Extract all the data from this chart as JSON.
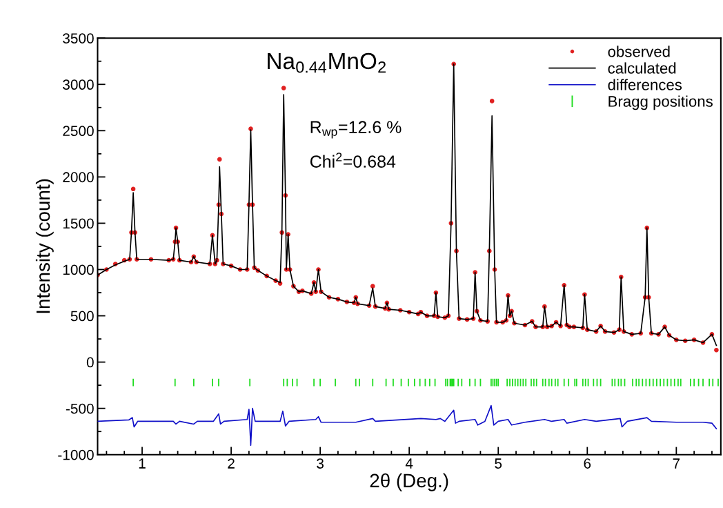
{
  "chart_data": {
    "type": "line",
    "xlabel": "2θ (Deg.)",
    "ylabel": "Intensity (count)",
    "annotations": [
      "Na$_{0.44}$MnO$_{2}$",
      "R$_{wp}$=12.6 %",
      "Chi$^{2}$=0.684"
    ],
    "xlim": [
      0.5,
      7.5
    ],
    "xticks": [
      1,
      2,
      3,
      4,
      5,
      6,
      7
    ],
    "ylim": [
      -1000,
      3500
    ],
    "yticks": [
      -1000,
      -500,
      0,
      500,
      1000,
      1500,
      2000,
      2500,
      3000,
      3500
    ],
    "grid": false,
    "legend": "top right",
    "series": [
      {
        "name": "observed",
        "type": "scatter",
        "marker": "circle",
        "color": "#e02020",
        "x": [
          0.5,
          0.6,
          0.7,
          0.8,
          0.86,
          0.88,
          0.9,
          0.92,
          0.94,
          1.1,
          1.3,
          1.35,
          1.37,
          1.38,
          1.4,
          1.42,
          1.55,
          1.58,
          1.61,
          1.76,
          1.79,
          1.82,
          1.84,
          1.86,
          1.87,
          1.89,
          1.91,
          2.0,
          2.1,
          2.18,
          2.2,
          2.22,
          2.24,
          2.26,
          2.3,
          2.4,
          2.5,
          2.55,
          2.57,
          2.59,
          2.61,
          2.62,
          2.64,
          2.66,
          2.7,
          2.76,
          2.8,
          2.9,
          2.93,
          2.95,
          2.98,
          3.01,
          3.1,
          3.2,
          3.3,
          3.38,
          3.4,
          3.42,
          3.55,
          3.59,
          3.62,
          3.73,
          3.75,
          3.77,
          3.9,
          4.0,
          4.1,
          4.13,
          4.2,
          4.28,
          4.3,
          4.32,
          4.4,
          4.44,
          4.47,
          4.5,
          4.53,
          4.56,
          4.65,
          4.72,
          4.74,
          4.76,
          4.8,
          4.88,
          4.9,
          4.93,
          4.96,
          4.98,
          5.05,
          5.09,
          5.11,
          5.13,
          5.15,
          5.18,
          5.3,
          5.38,
          5.42,
          5.5,
          5.52,
          5.55,
          5.6,
          5.65,
          5.7,
          5.74,
          5.77,
          5.8,
          5.85,
          5.95,
          5.97,
          6.0,
          6.1,
          6.15,
          6.2,
          6.3,
          6.36,
          6.38,
          6.41,
          6.5,
          6.6,
          6.65,
          6.67,
          6.69,
          6.72,
          6.8,
          6.87,
          6.92,
          7.0,
          7.1,
          7.2,
          7.3,
          7.4,
          7.45
        ],
        "values": [
          940,
          1000,
          1060,
          1100,
          1110,
          1400,
          1870,
          1400,
          1110,
          1110,
          1100,
          1110,
          1300,
          1450,
          1300,
          1100,
          1080,
          1140,
          1080,
          1060,
          1370,
          1060,
          1100,
          1700,
          2190,
          1600,
          1060,
          1040,
          1000,
          1000,
          1700,
          2520,
          1700,
          1020,
          990,
          930,
          880,
          850,
          1400,
          2960,
          1800,
          1000,
          1380,
          1000,
          820,
          760,
          770,
          740,
          860,
          760,
          1000,
          760,
          700,
          680,
          650,
          640,
          700,
          630,
          610,
          820,
          600,
          580,
          640,
          570,
          560,
          540,
          520,
          540,
          500,
          500,
          750,
          490,
          480,
          500,
          1500,
          3220,
          1200,
          470,
          460,
          470,
          970,
          550,
          450,
          440,
          1200,
          2820,
          1000,
          430,
          430,
          450,
          720,
          500,
          550,
          420,
          400,
          440,
          380,
          380,
          600,
          380,
          390,
          430,
          390,
          830,
          400,
          380,
          380,
          370,
          730,
          350,
          330,
          390,
          330,
          320,
          350,
          920,
          330,
          300,
          310,
          700,
          1450,
          700,
          310,
          300,
          380,
          290,
          240,
          230,
          240,
          210,
          300,
          130
        ]
      },
      {
        "name": "calculated",
        "color": "#000000",
        "x": [
          0.5,
          0.6,
          0.7,
          0.8,
          0.86,
          0.88,
          0.9,
          0.92,
          0.94,
          1.1,
          1.3,
          1.35,
          1.37,
          1.38,
          1.4,
          1.42,
          1.55,
          1.58,
          1.61,
          1.76,
          1.79,
          1.82,
          1.84,
          1.86,
          1.87,
          1.89,
          1.91,
          2.0,
          2.1,
          2.18,
          2.2,
          2.22,
          2.24,
          2.26,
          2.3,
          2.4,
          2.5,
          2.55,
          2.57,
          2.59,
          2.61,
          2.62,
          2.64,
          2.66,
          2.7,
          2.76,
          2.8,
          2.9,
          2.93,
          2.95,
          2.98,
          3.01,
          3.1,
          3.2,
          3.3,
          3.38,
          3.4,
          3.42,
          3.55,
          3.59,
          3.62,
          3.73,
          3.75,
          3.77,
          3.9,
          4.0,
          4.1,
          4.13,
          4.2,
          4.28,
          4.3,
          4.32,
          4.4,
          4.44,
          4.47,
          4.5,
          4.53,
          4.56,
          4.65,
          4.72,
          4.74,
          4.76,
          4.8,
          4.88,
          4.9,
          4.93,
          4.96,
          4.98,
          5.05,
          5.09,
          5.11,
          5.13,
          5.15,
          5.18,
          5.3,
          5.38,
          5.42,
          5.5,
          5.52,
          5.55,
          5.6,
          5.65,
          5.7,
          5.74,
          5.77,
          5.8,
          5.85,
          5.95,
          5.97,
          6.0,
          6.1,
          6.15,
          6.2,
          6.3,
          6.36,
          6.38,
          6.41,
          6.5,
          6.6,
          6.65,
          6.67,
          6.69,
          6.72,
          6.8,
          6.87,
          6.92,
          7.0,
          7.1,
          7.2,
          7.3,
          7.4,
          7.45
        ],
        "values": [
          940,
          1000,
          1050,
          1090,
          1110,
          1400,
          1830,
          1400,
          1110,
          1110,
          1100,
          1110,
          1300,
          1450,
          1300,
          1100,
          1080,
          1140,
          1080,
          1060,
          1370,
          1060,
          1100,
          1700,
          2110,
          1600,
          1060,
          1040,
          1000,
          1000,
          1700,
          2510,
          1700,
          1020,
          990,
          930,
          880,
          860,
          1400,
          2890,
          1800,
          1000,
          1380,
          1000,
          820,
          760,
          770,
          740,
          860,
          760,
          1000,
          760,
          700,
          680,
          650,
          640,
          700,
          630,
          610,
          800,
          600,
          580,
          640,
          570,
          560,
          540,
          520,
          540,
          500,
          500,
          750,
          490,
          480,
          500,
          1500,
          3220,
          1200,
          470,
          460,
          470,
          970,
          550,
          450,
          440,
          1200,
          2660,
          1000,
          430,
          430,
          450,
          720,
          500,
          550,
          420,
          400,
          440,
          380,
          380,
          600,
          380,
          390,
          430,
          390,
          830,
          400,
          380,
          380,
          370,
          730,
          350,
          330,
          390,
          330,
          320,
          350,
          920,
          330,
          300,
          310,
          700,
          1450,
          700,
          310,
          300,
          380,
          290,
          240,
          230,
          240,
          210,
          300,
          180
        ]
      },
      {
        "name": "differences",
        "color": "#1010c8",
        "x": [
          0.5,
          0.85,
          0.89,
          0.91,
          0.95,
          1.35,
          1.38,
          1.42,
          1.58,
          1.62,
          1.8,
          1.86,
          1.88,
          1.92,
          2.18,
          2.2,
          2.22,
          2.24,
          2.27,
          2.55,
          2.58,
          2.61,
          2.65,
          2.95,
          2.98,
          3.01,
          3.4,
          3.59,
          3.62,
          4.13,
          4.3,
          4.35,
          4.4,
          4.5,
          4.52,
          4.56,
          4.74,
          4.77,
          4.85,
          4.92,
          4.95,
          5.0,
          5.11,
          5.15,
          5.3,
          5.52,
          5.6,
          5.74,
          5.77,
          5.97,
          6.1,
          6.37,
          6.39,
          6.45,
          6.67,
          6.72,
          7.0,
          7.3,
          7.4,
          7.45
        ],
        "values": [
          -640,
          -625,
          -600,
          -700,
          -640,
          -640,
          -670,
          -640,
          -670,
          -640,
          -640,
          -560,
          -670,
          -640,
          -620,
          -510,
          -900,
          -500,
          -640,
          -640,
          -530,
          -690,
          -640,
          -620,
          -590,
          -650,
          -650,
          -610,
          -640,
          -610,
          -620,
          -610,
          -640,
          -520,
          -660,
          -640,
          -620,
          -680,
          -640,
          -470,
          -680,
          -640,
          -620,
          -680,
          -650,
          -620,
          -640,
          -620,
          -660,
          -620,
          -640,
          -610,
          -700,
          -640,
          -600,
          -640,
          -650,
          -650,
          -660,
          -720
        ]
      },
      {
        "name": "Bragg positions",
        "type": "bar",
        "color": "#22dd22",
        "base": [
          -260,
          -260,
          -260,
          -260,
          -260,
          -260,
          -260,
          -260,
          -260,
          -260,
          -260,
          -260,
          -260,
          -260,
          -260,
          -260,
          -260,
          -260,
          -260,
          -260,
          -260,
          -260,
          -260,
          -260,
          -260,
          -260,
          -260,
          -260,
          -260,
          -260,
          -260,
          -260,
          -260,
          -260,
          -260,
          -260,
          -260,
          -260,
          -260,
          -260,
          -260,
          -260,
          -260,
          -260,
          -260,
          -260,
          -260,
          -260,
          -260,
          -260,
          -260,
          -260,
          -260,
          -260,
          -260,
          -260,
          -260,
          -260,
          -260,
          -260,
          -260,
          -260,
          -260,
          -260,
          -260,
          -260,
          -260,
          -260,
          -260,
          -260,
          -260,
          -260,
          -260,
          -260,
          -260,
          -260,
          -260,
          -260,
          -260,
          -260,
          -260,
          -260,
          -260,
          -260,
          -260,
          -260,
          -260,
          -260,
          -260,
          -260,
          -260,
          -260,
          -260,
          -260,
          -260,
          -260
        ],
        "x": [
          0.9,
          1.37,
          1.58,
          1.79,
          1.86,
          2.21,
          2.59,
          2.63,
          2.69,
          2.74,
          2.93,
          3.0,
          3.17,
          3.4,
          3.44,
          3.59,
          3.74,
          3.82,
          3.91,
          3.99,
          4.06,
          4.12,
          4.18,
          4.23,
          4.29,
          4.41,
          4.43,
          4.46,
          4.47,
          4.48,
          4.49,
          4.5,
          4.55,
          4.59,
          4.68,
          4.74,
          4.8,
          4.92,
          4.94,
          4.96,
          4.98,
          5.0,
          5.1,
          5.13,
          5.16,
          5.19,
          5.22,
          5.25,
          5.28,
          5.31,
          5.37,
          5.4,
          5.43,
          5.5,
          5.53,
          5.57,
          5.6,
          5.64,
          5.67,
          5.74,
          5.79,
          5.86,
          5.88,
          5.95,
          5.98,
          6.01,
          6.07,
          6.11,
          6.15,
          6.28,
          6.31,
          6.35,
          6.38,
          6.42,
          6.51,
          6.55,
          6.58,
          6.62,
          6.66,
          6.7,
          6.74,
          6.78,
          6.82,
          6.86,
          6.9,
          6.94,
          6.98,
          7.02,
          7.05,
          7.16,
          7.2,
          7.25,
          7.3,
          7.37,
          7.41,
          7.47
        ],
        "values": [
          80,
          80,
          80,
          80,
          80,
          80,
          80,
          80,
          80,
          80,
          80,
          80,
          80,
          80,
          80,
          80,
          80,
          80,
          80,
          80,
          80,
          80,
          80,
          80,
          80,
          80,
          80,
          80,
          80,
          80,
          80,
          80,
          80,
          80,
          80,
          80,
          80,
          80,
          80,
          80,
          80,
          80,
          80,
          80,
          80,
          80,
          80,
          80,
          80,
          80,
          80,
          80,
          80,
          80,
          80,
          80,
          80,
          80,
          80,
          80,
          80,
          80,
          80,
          80,
          80,
          80,
          80,
          80,
          80,
          80,
          80,
          80,
          80,
          80,
          80,
          80,
          80,
          80,
          80,
          80,
          80,
          80,
          80,
          80,
          80,
          80,
          80,
          80,
          80,
          80,
          80,
          80,
          80,
          80,
          80,
          80
        ]
      }
    ]
  }
}
